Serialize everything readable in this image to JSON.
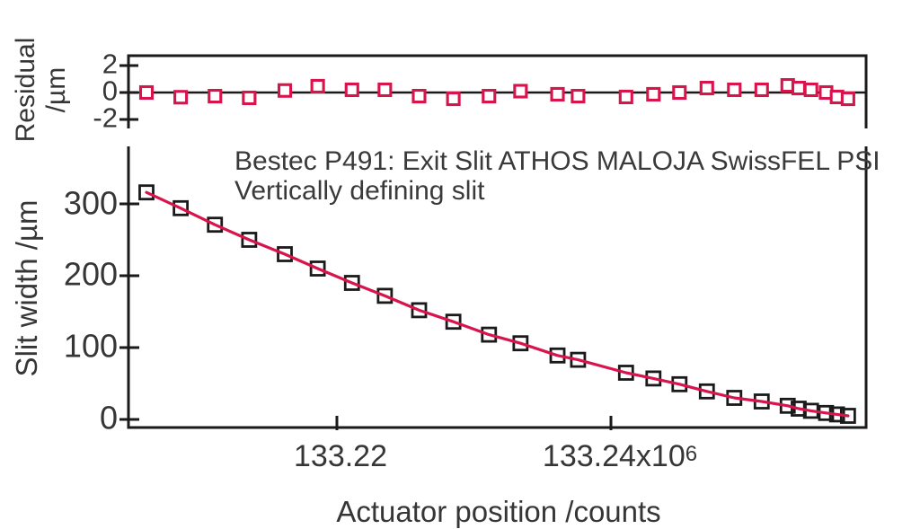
{
  "figure": {
    "title_line1": "Bestec P491: Exit Slit ATHOS MALOJA SwissFEL PSI",
    "title_line2": "Vertically defining slit",
    "colors": {
      "accent_red": "#d7144b",
      "axis_black": "#1a1a1a",
      "text_gray": "#3a3a3a",
      "background": "#ffffff"
    }
  },
  "chart_data": [
    {
      "type": "scatter",
      "panel": "residual",
      "ylabel_line1": "Residual",
      "ylabel_line2": "/µm",
      "marker": "open-square-red",
      "marker_color": "#d7144b",
      "zero_line": true,
      "ylim": [
        -2.67,
        2.73
      ],
      "yticks": [
        2,
        0,
        -2
      ],
      "ytick_labels": [
        "2",
        "0",
        "-2"
      ],
      "x_unit": "counts x10^6",
      "x": [
        133.2061,
        133.2086,
        133.2111,
        133.2136,
        133.2162,
        133.2186,
        133.2211,
        133.2235,
        133.226,
        133.2285,
        133.2311,
        133.2334,
        133.2361,
        133.2376,
        133.2411,
        133.2431,
        133.245,
        133.247,
        133.249,
        133.251,
        133.2529,
        133.2537,
        133.2546,
        133.2557,
        133.2565,
        133.2573
      ],
      "y": [
        0.0,
        -0.35,
        -0.27,
        -0.4,
        0.15,
        0.47,
        0.2,
        0.2,
        -0.27,
        -0.47,
        -0.27,
        0.1,
        -0.13,
        -0.27,
        -0.33,
        -0.13,
        0.0,
        0.33,
        0.2,
        0.2,
        0.53,
        0.33,
        0.2,
        0.0,
        -0.33,
        -0.47
      ]
    },
    {
      "type": "scatter+line",
      "panel": "slit-width",
      "ylabel": "Slit width /µm",
      "xlabel": "Actuator position /counts",
      "marker": "open-square-black",
      "marker_color": "#1a1a1a",
      "fit_line_color": "#d7144b",
      "ylim": [
        -11.25,
        380
      ],
      "xlim": [
        133.20479,
        133.25862
      ],
      "yticks": [
        300,
        200,
        100,
        0
      ],
      "ytick_labels": [
        "300",
        "200",
        "100",
        "0"
      ],
      "xticks": [
        133.22,
        133.24
      ],
      "xtick_labels": [
        {
          "main": "133.22",
          "sup": ""
        },
        {
          "main": "133.24x10",
          "sup": "6"
        }
      ],
      "x_unit": "counts x10^6",
      "x": [
        133.2061,
        133.2086,
        133.2111,
        133.2136,
        133.2162,
        133.2186,
        133.2211,
        133.2235,
        133.226,
        133.2285,
        133.2311,
        133.2334,
        133.2361,
        133.2376,
        133.2411,
        133.2431,
        133.245,
        133.247,
        133.249,
        133.251,
        133.2529,
        133.2537,
        133.2546,
        133.2557,
        133.2565,
        133.2573
      ],
      "y": [
        316,
        294,
        271,
        250,
        230,
        210,
        190,
        172,
        152,
        136,
        118,
        106,
        89,
        83,
        65,
        57,
        49,
        39,
        30,
        25,
        19,
        15,
        12,
        9,
        7,
        5
      ]
    }
  ]
}
